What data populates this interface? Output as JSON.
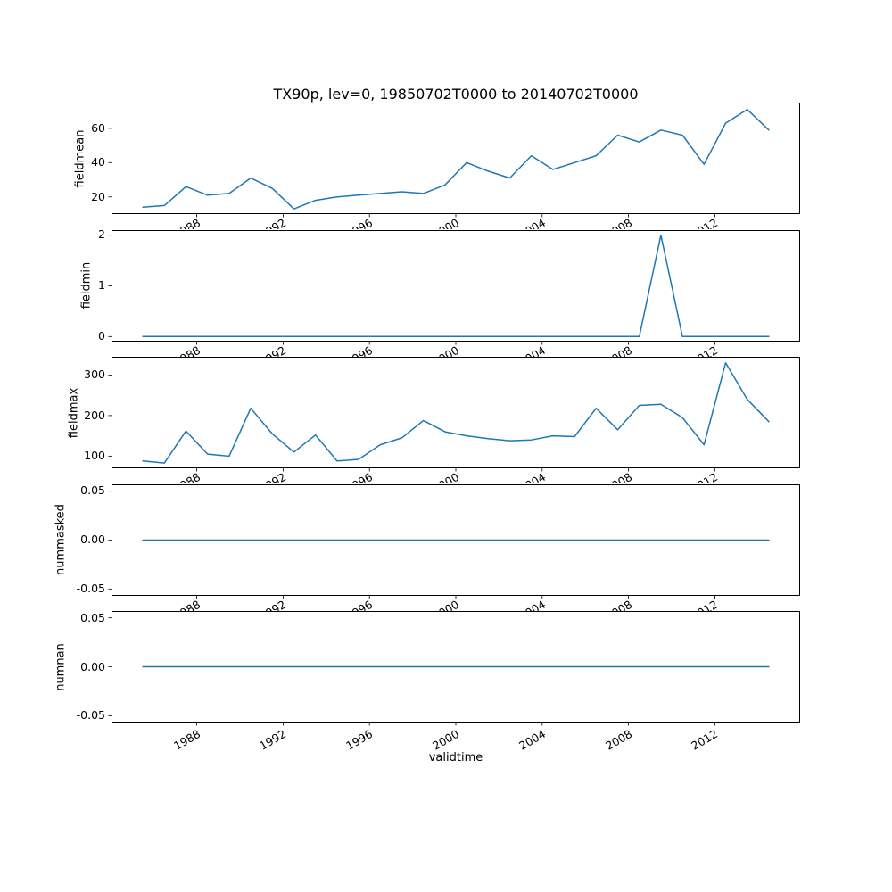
{
  "figure": {
    "title": "TX90p, lev=0, 19850702T0000 to 20140702T0000",
    "xlabel": "validtime",
    "background": "#ffffff",
    "line_color": "#1f77b4"
  },
  "x": {
    "years": [
      1985,
      1986,
      1987,
      1988,
      1989,
      1990,
      1991,
      1992,
      1993,
      1994,
      1995,
      1996,
      1997,
      1998,
      1999,
      2000,
      2001,
      2002,
      2003,
      2004,
      2005,
      2006,
      2007,
      2008,
      2009,
      2010,
      2011,
      2012,
      2013,
      2014
    ],
    "point_offset": 0.5,
    "xlim": [
      1984.05,
      2015.95
    ],
    "tick_years": [
      1988,
      1992,
      1996,
      2000,
      2004,
      2008,
      2012
    ],
    "tick_labels": [
      "1988",
      "1992",
      "1996",
      "2000",
      "2004",
      "2008",
      "2012"
    ]
  },
  "chart_data": [
    {
      "type": "line",
      "name": "fieldmean",
      "ylabel": "fieldmean",
      "yticks": [
        20,
        40,
        60
      ],
      "ytick_labels": [
        "20",
        "40",
        "60"
      ],
      "ylim": [
        10,
        75
      ],
      "values": [
        14,
        15,
        26,
        21,
        22,
        31,
        25,
        13,
        18,
        20,
        21,
        22,
        23,
        22,
        27,
        40,
        35,
        31,
        44,
        36,
        40,
        44,
        56,
        52,
        59,
        56,
        39,
        63,
        71,
        59
      ]
    },
    {
      "type": "line",
      "name": "fieldmin",
      "ylabel": "fieldmin",
      "yticks": [
        0,
        1,
        2
      ],
      "ytick_labels": [
        "0",
        "1",
        "2"
      ],
      "ylim": [
        -0.1,
        2.1
      ],
      "values": [
        0,
        0,
        0,
        0,
        0,
        0,
        0,
        0,
        0,
        0,
        0,
        0,
        0,
        0,
        0,
        0,
        0,
        0,
        0,
        0,
        0,
        0,
        0,
        0,
        2,
        0,
        0,
        0,
        0,
        0
      ]
    },
    {
      "type": "line",
      "name": "fieldmax",
      "ylabel": "fieldmax",
      "yticks": [
        100,
        200,
        300
      ],
      "ytick_labels": [
        "100",
        "200",
        "300"
      ],
      "ylim": [
        70,
        345
      ],
      "values": [
        88,
        83,
        162,
        105,
        100,
        218,
        155,
        110,
        152,
        88,
        92,
        128,
        145,
        188,
        160,
        150,
        143,
        138,
        140,
        150,
        148,
        218,
        165,
        225,
        228,
        195,
        128,
        330,
        240,
        185
      ]
    },
    {
      "type": "line",
      "name": "nummasked",
      "ylabel": "nummasked",
      "yticks": [
        -0.05,
        0,
        0.05
      ],
      "ytick_labels": [
        "-0.05",
        "0.00",
        "0.05"
      ],
      "ylim": [
        -0.057,
        0.057
      ],
      "values": [
        0,
        0,
        0,
        0,
        0,
        0,
        0,
        0,
        0,
        0,
        0,
        0,
        0,
        0,
        0,
        0,
        0,
        0,
        0,
        0,
        0,
        0,
        0,
        0,
        0,
        0,
        0,
        0,
        0,
        0
      ]
    },
    {
      "type": "line",
      "name": "numnan",
      "ylabel": "numnan",
      "yticks": [
        -0.05,
        0,
        0.05
      ],
      "ytick_labels": [
        "-0.05",
        "0.00",
        "0.05"
      ],
      "ylim": [
        -0.057,
        0.057
      ],
      "values": [
        0,
        0,
        0,
        0,
        0,
        0,
        0,
        0,
        0,
        0,
        0,
        0,
        0,
        0,
        0,
        0,
        0,
        0,
        0,
        0,
        0,
        0,
        0,
        0,
        0,
        0,
        0,
        0,
        0,
        0
      ]
    }
  ]
}
